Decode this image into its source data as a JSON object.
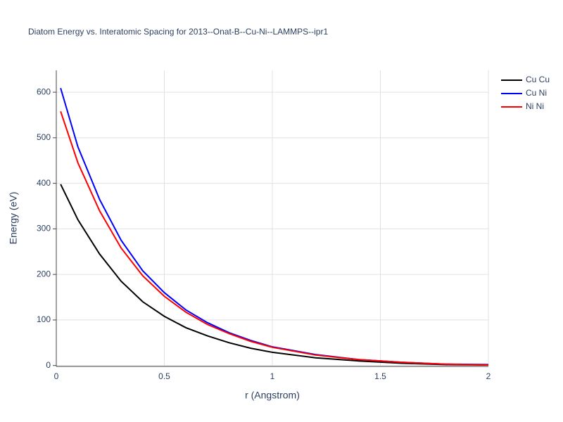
{
  "chart_data": {
    "type": "line",
    "title": "Diatom Energy vs. Interatomic Spacing for 2013--Onat-B--Cu-Ni--LAMMPS--ipr1",
    "x_label": "r (Angstrom)",
    "y_label": "Energy (eV)",
    "x": [
      0.02,
      0.1,
      0.2,
      0.3,
      0.4,
      0.5,
      0.6,
      0.7,
      0.8,
      0.9,
      1.0,
      1.2,
      1.4,
      1.6,
      1.8,
      2.0
    ],
    "series": [
      {
        "name": "Cu Cu",
        "color": "#000000",
        "values": [
          398,
          320,
          245,
          185,
          140,
          108,
          83,
          65,
          50,
          38,
          29,
          17,
          10,
          5,
          2,
          1
        ]
      },
      {
        "name": "Cu Ni",
        "color": "#0000ff",
        "values": [
          609,
          480,
          365,
          275,
          208,
          160,
          122,
          94,
          72,
          55,
          41,
          24,
          13,
          7,
          3,
          2
        ]
      },
      {
        "name": "Ni Ni",
        "color": "#ff0000",
        "values": [
          558,
          445,
          340,
          258,
          197,
          152,
          117,
          90,
          70,
          53,
          40,
          23,
          13,
          7,
          3,
          1
        ]
      }
    ],
    "xlim": [
      0,
      2
    ],
    "xticks": [
      0,
      0.5,
      1,
      1.5,
      2
    ],
    "ylim": [
      -2,
      648
    ],
    "yticks": [
      0,
      100,
      200,
      300,
      400,
      500,
      600
    ],
    "grid": true,
    "legend": "top-right"
  }
}
